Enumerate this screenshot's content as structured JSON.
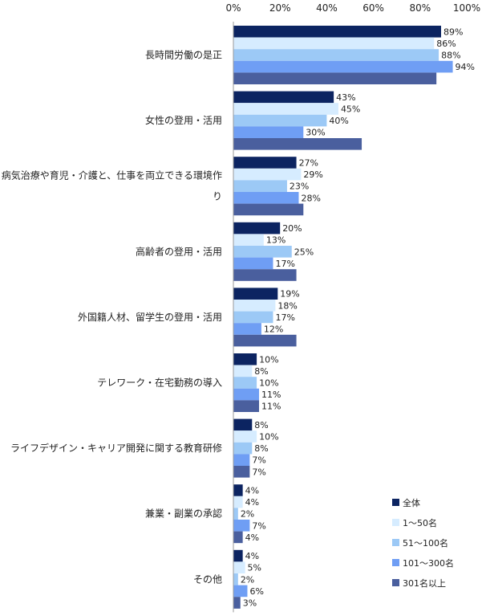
{
  "chart_data": {
    "type": "bar",
    "orientation": "horizontal",
    "xlim": [
      0,
      100
    ],
    "ticks": [
      "0%",
      "20%",
      "40%",
      "60%",
      "80%",
      "100%"
    ],
    "categories": [
      [
        "長時間労働の是正"
      ],
      [
        "女性の登用・活用"
      ],
      [
        "病気治療や育児・介護と、仕事を両立できる環境作",
        "り"
      ],
      [
        "高齢者の登用・活用"
      ],
      [
        "外国籍人材、留学生の登用・活用"
      ],
      [
        "テレワーク・在宅勤務の導入"
      ],
      [
        "ライフデザイン・キャリア開発に関する教育研修"
      ],
      [
        "兼業・副業の承認"
      ],
      [
        "その他"
      ]
    ],
    "series": [
      {
        "name": "全体",
        "color": "#0c2461",
        "values": [
          89,
          43,
          27,
          20,
          19,
          10,
          8,
          4,
          4
        ]
      },
      {
        "name": "1～50名",
        "color": "#d6ecff",
        "values": [
          86,
          45,
          29,
          13,
          18,
          8,
          10,
          4,
          5
        ]
      },
      {
        "name": "51～100名",
        "color": "#9cc9f6",
        "values": [
          88,
          40,
          23,
          25,
          17,
          10,
          8,
          2,
          2
        ]
      },
      {
        "name": "101～300名",
        "color": "#6f9ef4",
        "values": [
          94,
          30,
          28,
          17,
          12,
          11,
          7,
          7,
          6
        ]
      },
      {
        "name": "301名以上",
        "color": "#4a5f9e",
        "values": [
          87,
          55,
          30,
          27,
          27,
          11,
          7,
          4,
          3
        ]
      }
    ],
    "data_labels": [
      [
        "89%",
        "86%",
        "88%",
        "94%",
        ""
      ],
      [
        "43%",
        "45%",
        "40%",
        "30%",
        ""
      ],
      [
        "27%",
        "29%",
        "23%",
        "28%",
        ""
      ],
      [
        "20%",
        "13%",
        "25%",
        "17%",
        ""
      ],
      [
        "19%",
        "18%",
        "17%",
        "12%",
        ""
      ],
      [
        "10%",
        "8%",
        "10%",
        "11%",
        "11%"
      ],
      [
        "8%",
        "10%",
        "8%",
        "7%",
        "7%"
      ],
      [
        "4%",
        "4%",
        "2%",
        "7%",
        "4%"
      ],
      [
        "4%",
        "5%",
        "2%",
        "6%",
        "3%"
      ]
    ],
    "legend_position": "bottom-right",
    "grid": false
  }
}
